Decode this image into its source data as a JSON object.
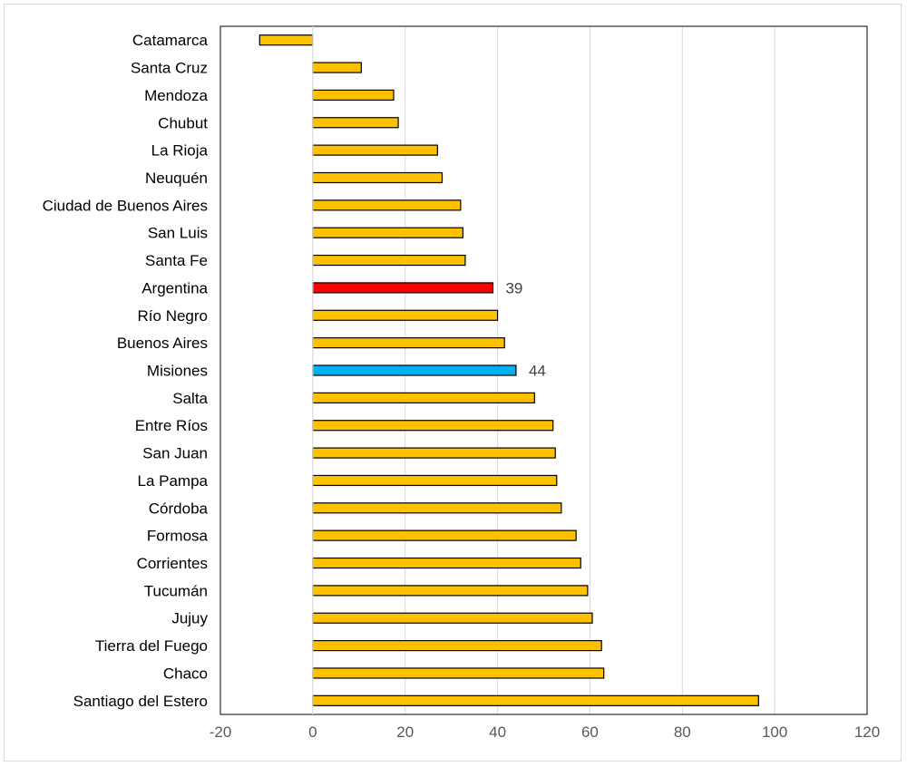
{
  "chart_data": {
    "type": "bar",
    "orientation": "horizontal",
    "categories": [
      "Catamarca",
      "Santa Cruz",
      "Mendoza",
      "Chubut",
      "La Rioja",
      "Neuquén",
      "Ciudad de Buenos Aires",
      "San Luis",
      "Santa Fe",
      "Argentina",
      "Río Negro",
      "Buenos Aires",
      "Misiones",
      "Salta",
      "Entre Ríos",
      "San Juan",
      "La Pampa",
      "Córdoba",
      "Formosa",
      "Corrientes",
      "Tucumán",
      "Jujuy",
      "Tierra del Fuego",
      "Chaco",
      "Santiago del Estero"
    ],
    "values": [
      -11.5,
      10.5,
      17.5,
      18.5,
      27,
      28,
      32,
      32.5,
      33,
      39,
      40,
      41.5,
      44,
      48,
      52,
      52.5,
      52.8,
      53.8,
      57,
      58,
      59.5,
      60.5,
      62.5,
      63,
      96.5
    ],
    "bar_colors": [
      "#FFC000",
      "#FFC000",
      "#FFC000",
      "#FFC000",
      "#FFC000",
      "#FFC000",
      "#FFC000",
      "#FFC000",
      "#FFC000",
      "#FF0000",
      "#FFC000",
      "#FFC000",
      "#00B0F0",
      "#FFC000",
      "#FFC000",
      "#FFC000",
      "#FFC000",
      "#FFC000",
      "#FFC000",
      "#FFC000",
      "#FFC000",
      "#FFC000",
      "#FFC000",
      "#FFC000",
      "#FFC000"
    ],
    "data_labels": [
      {
        "category": "Argentina",
        "text": "39"
      },
      {
        "category": "Misiones",
        "text": "44"
      }
    ],
    "xlim": [
      -20,
      120
    ],
    "xticks": [
      -20,
      0,
      20,
      40,
      60,
      80,
      100,
      120
    ],
    "grid": true,
    "title": "",
    "xlabel": "",
    "ylabel": ""
  }
}
